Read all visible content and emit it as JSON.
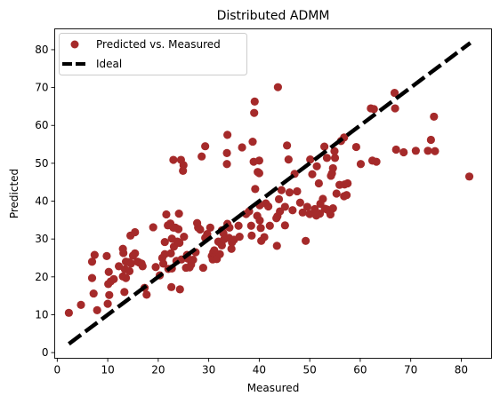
{
  "chart_data": {
    "type": "scatter",
    "title": "Distributed ADMM",
    "xlabel": "Measured",
    "ylabel": "Predicted",
    "xlim": [
      -0.5,
      86
    ],
    "ylim": [
      -1.5,
      85.5
    ],
    "xticks": [
      0,
      10,
      20,
      30,
      40,
      50,
      60,
      70,
      80
    ],
    "yticks": [
      0,
      10,
      20,
      30,
      40,
      50,
      60,
      70,
      80
    ],
    "grid": false,
    "legend_position": "top-left",
    "colors": {
      "points": "#a52a2a",
      "ideal": "#000000"
    },
    "series": [
      {
        "name": "Predicted vs. Measured",
        "kind": "scatter",
        "points": [
          [
            2.3,
            10.5
          ],
          [
            4.7,
            12.6
          ],
          [
            6.9,
            19.7
          ],
          [
            6.9,
            24.0
          ],
          [
            7.4,
            25.8
          ],
          [
            7.2,
            15.6
          ],
          [
            7.9,
            11.2
          ],
          [
            9.8,
            25.5
          ],
          [
            10.0,
            12.9
          ],
          [
            10.3,
            15.2
          ],
          [
            10.1,
            18.1
          ],
          [
            10.6,
            18.8
          ],
          [
            10.2,
            21.3
          ],
          [
            11.2,
            19.4
          ],
          [
            12.2,
            22.8
          ],
          [
            13.3,
            16.0
          ],
          [
            13.0,
            20.1
          ],
          [
            13.6,
            19.7
          ],
          [
            13.4,
            22.0
          ],
          [
            13.1,
            26.3
          ],
          [
            13.0,
            27.4
          ],
          [
            13.6,
            24.0
          ],
          [
            14.1,
            23.9
          ],
          [
            14.3,
            21.5
          ],
          [
            14.6,
            23.5
          ],
          [
            14.5,
            30.9
          ],
          [
            15.0,
            25.6
          ],
          [
            15.4,
            31.8
          ],
          [
            15.4,
            26.2
          ],
          [
            15.9,
            24.0
          ],
          [
            16.2,
            23.8
          ],
          [
            16.9,
            22.8
          ],
          [
            16.7,
            23.5
          ],
          [
            17.3,
            17.1
          ],
          [
            17.7,
            15.3
          ],
          [
            19.0,
            33.1
          ],
          [
            19.5,
            22.6
          ],
          [
            20.3,
            20.4
          ],
          [
            20.8,
            25.0
          ],
          [
            21.0,
            23.5
          ],
          [
            21.3,
            29.2
          ],
          [
            21.3,
            26.0
          ],
          [
            21.6,
            36.5
          ],
          [
            21.9,
            33.6
          ],
          [
            22.4,
            34.1
          ],
          [
            22.0,
            22.1
          ],
          [
            22.6,
            17.3
          ],
          [
            22.7,
            22.2
          ],
          [
            22.5,
            26.2
          ],
          [
            22.7,
            30.1
          ],
          [
            23.0,
            50.9
          ],
          [
            23.0,
            33.0
          ],
          [
            23.1,
            28.0
          ],
          [
            23.4,
            33.0
          ],
          [
            23.6,
            24.2
          ],
          [
            23.8,
            29.3
          ],
          [
            24.0,
            32.6
          ],
          [
            24.1,
            36.7
          ],
          [
            24.2,
            29.0
          ],
          [
            24.3,
            16.7
          ],
          [
            24.6,
            24.6
          ],
          [
            24.5,
            50.9
          ],
          [
            24.9,
            48.0
          ],
          [
            25.0,
            49.5
          ],
          [
            25.1,
            30.6
          ],
          [
            25.5,
            22.4
          ],
          [
            25.7,
            25.8
          ],
          [
            25.9,
            24.8
          ],
          [
            26.2,
            22.5
          ],
          [
            26.5,
            23.2
          ],
          [
            26.9,
            24.5
          ],
          [
            27.4,
            26.5
          ],
          [
            27.7,
            34.2
          ],
          [
            27.9,
            33.0
          ],
          [
            28.3,
            32.5
          ],
          [
            28.6,
            51.8
          ],
          [
            28.9,
            22.4
          ],
          [
            29.3,
            54.5
          ],
          [
            29.3,
            30.3
          ],
          [
            29.7,
            31.3
          ],
          [
            30.3,
            33.0
          ],
          [
            30.6,
            25.5
          ],
          [
            30.8,
            24.6
          ],
          [
            30.9,
            26.5
          ],
          [
            31.1,
            27.0
          ],
          [
            31.3,
            25.3
          ],
          [
            31.6,
            24.7
          ],
          [
            31.9,
            29.3
          ],
          [
            32.2,
            26.0
          ],
          [
            32.3,
            29.0
          ],
          [
            32.6,
            28.3
          ],
          [
            32.9,
            31.5
          ],
          [
            32.6,
            32.3
          ],
          [
            33.1,
            30.0
          ],
          [
            33.7,
            57.5
          ],
          [
            33.6,
            49.8
          ],
          [
            33.6,
            52.7
          ],
          [
            33.7,
            34.0
          ],
          [
            34.1,
            33.0
          ],
          [
            34.0,
            30.3
          ],
          [
            34.5,
            27.4
          ],
          [
            34.6,
            29.1
          ],
          [
            35.0,
            29.8
          ],
          [
            35.9,
            33.5
          ],
          [
            36.1,
            30.6
          ],
          [
            36.6,
            54.2
          ],
          [
            37.4,
            36.6
          ],
          [
            38.0,
            37.3
          ],
          [
            38.4,
            33.5
          ],
          [
            38.5,
            30.9
          ],
          [
            38.7,
            55.7
          ],
          [
            38.9,
            50.4
          ],
          [
            39.0,
            63.3
          ],
          [
            39.1,
            66.3
          ],
          [
            39.2,
            43.2
          ],
          [
            39.7,
            47.7
          ],
          [
            40.0,
            50.7
          ],
          [
            40.0,
            47.4
          ],
          [
            40.1,
            38.9
          ],
          [
            39.6,
            36.1
          ],
          [
            40.1,
            34.9
          ],
          [
            40.3,
            32.9
          ],
          [
            40.4,
            29.5
          ],
          [
            41.0,
            30.5
          ],
          [
            41.3,
            39.4
          ],
          [
            41.8,
            38.6
          ],
          [
            42.1,
            33.5
          ],
          [
            43.4,
            35.5
          ],
          [
            43.5,
            28.2
          ],
          [
            43.6,
            36.0
          ],
          [
            43.7,
            70.1
          ],
          [
            43.9,
            40.5
          ],
          [
            44.1,
            37.3
          ],
          [
            44.4,
            42.9
          ],
          [
            45.1,
            38.5
          ],
          [
            45.1,
            33.6
          ],
          [
            45.5,
            54.7
          ],
          [
            45.8,
            51.0
          ],
          [
            46.0,
            42.3
          ],
          [
            46.6,
            37.6
          ],
          [
            47.0,
            47.2
          ],
          [
            47.5,
            42.6
          ],
          [
            48.1,
            39.6
          ],
          [
            48.6,
            37.0
          ],
          [
            49.2,
            29.5
          ],
          [
            49.5,
            38.5
          ],
          [
            50.0,
            36.6
          ],
          [
            50.1,
            51.0
          ],
          [
            50.5,
            47.1
          ],
          [
            51.0,
            37.9
          ],
          [
            51.2,
            36.5
          ],
          [
            51.3,
            36.2
          ],
          [
            51.4,
            49.2
          ],
          [
            51.8,
            44.7
          ],
          [
            52.0,
            36.7
          ],
          [
            52.1,
            39.3
          ],
          [
            52.6,
            40.6
          ],
          [
            52.9,
            54.4
          ],
          [
            53.0,
            38.0
          ],
          [
            53.4,
            37.8
          ],
          [
            53.4,
            51.4
          ],
          [
            54.0,
            37.0
          ],
          [
            54.1,
            36.5
          ],
          [
            54.2,
            46.7
          ],
          [
            54.4,
            47.3
          ],
          [
            54.6,
            48.7
          ],
          [
            54.6,
            38.1
          ],
          [
            54.9,
            53.2
          ],
          [
            55.0,
            51.4
          ],
          [
            55.3,
            42.0
          ],
          [
            55.9,
            44.3
          ],
          [
            56.2,
            55.9
          ],
          [
            56.8,
            56.8
          ],
          [
            56.8,
            41.3
          ],
          [
            56.9,
            44.4
          ],
          [
            57.3,
            41.6
          ],
          [
            57.5,
            44.7
          ],
          [
            59.2,
            54.3
          ],
          [
            60.1,
            49.8
          ],
          [
            62.1,
            64.5
          ],
          [
            62.7,
            64.3
          ],
          [
            62.4,
            50.7
          ],
          [
            63.2,
            50.4
          ],
          [
            66.8,
            68.6
          ],
          [
            66.9,
            64.5
          ],
          [
            67.1,
            53.6
          ],
          [
            68.6,
            52.9
          ],
          [
            71.0,
            53.3
          ],
          [
            73.4,
            53.3
          ],
          [
            74.0,
            56.2
          ],
          [
            74.6,
            62.3
          ],
          [
            74.8,
            53.2
          ],
          [
            81.6,
            46.5
          ]
        ]
      },
      {
        "name": "Ideal",
        "kind": "line",
        "style": "dashed",
        "points": [
          [
            2.3,
            2.3
          ],
          [
            81.8,
            81.8
          ]
        ]
      }
    ]
  }
}
